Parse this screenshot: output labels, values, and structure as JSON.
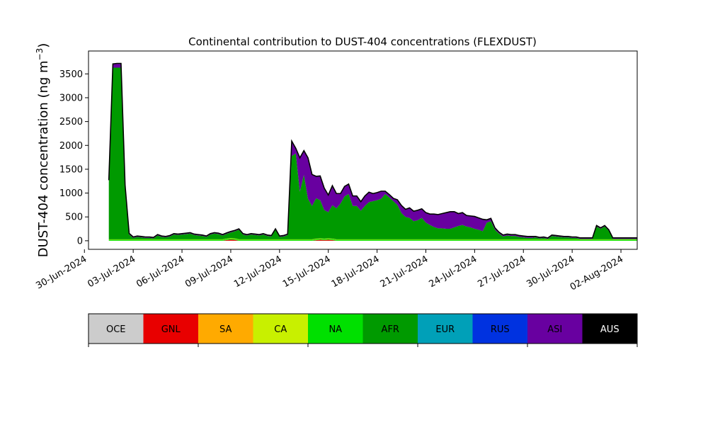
{
  "chart_data": {
    "type": "area",
    "stacked": true,
    "title": "Continental contribution to DUST-404 concentrations (FLEXDUST)",
    "ylabel": "DUST-404 concentration (ng m",
    "ylabel_sup": "−3",
    "ylabel_close": ")",
    "xlabel": "",
    "x_type": "date",
    "x_start": "2024-07-01T12:00",
    "x_step_hours": 6,
    "xlim": [
      "2024-06-30T06:00",
      "2024-08-03T00:00"
    ],
    "ylim": [
      -180,
      3980
    ],
    "y_ticks": [
      0,
      500,
      1000,
      1500,
      2000,
      2500,
      3000,
      3500
    ],
    "x_ticks": [
      "30-Jun-2024",
      "03-Jul-2024",
      "06-Jul-2024",
      "09-Jul-2024",
      "12-Jul-2024",
      "15-Jul-2024",
      "18-Jul-2024",
      "21-Jul-2024",
      "24-Jul-2024",
      "27-Jul-2024",
      "30-Jul-2024",
      "02-Aug-2024"
    ],
    "x_tick_dates": [
      "2024-06-30",
      "2024-07-03",
      "2024-07-06",
      "2024-07-09",
      "2024-07-12",
      "2024-07-15",
      "2024-07-18",
      "2024-07-21",
      "2024-07-24",
      "2024-07-27",
      "2024-07-30",
      "2024-08-02"
    ],
    "grid": false,
    "series": [
      {
        "name": "GNL",
        "color": "#e80000",
        "values": [
          0,
          0,
          0,
          0,
          0,
          0,
          0,
          0,
          0,
          0,
          0,
          0,
          0,
          0,
          0,
          0,
          0,
          0,
          0,
          0,
          0,
          0,
          0,
          0,
          0,
          0,
          0,
          0,
          0,
          15,
          25,
          18,
          0,
          0,
          0,
          0,
          0,
          0,
          0,
          0,
          0,
          0,
          0,
          0,
          0,
          0,
          0,
          0,
          0,
          0,
          0,
          12,
          20,
          15,
          20,
          15,
          0,
          0,
          0,
          0,
          0,
          0,
          0,
          0,
          0,
          0,
          0,
          0,
          0,
          0,
          0,
          0,
          0,
          0,
          0,
          0,
          0,
          0,
          0,
          0,
          0,
          0,
          0,
          0,
          0,
          0,
          0,
          0,
          0,
          0,
          0,
          0,
          0,
          0,
          0,
          0,
          0,
          0,
          0,
          0,
          0,
          0,
          0,
          0,
          0,
          0,
          0,
          0,
          0,
          0,
          0,
          0,
          0,
          0,
          0,
          0,
          0,
          0,
          0,
          0,
          0,
          0,
          0,
          0,
          0,
          0,
          0,
          0,
          0,
          0,
          0,
          0
        ]
      },
      {
        "name": "NA",
        "color": "#00e000",
        "values": [
          20,
          20,
          20,
          20,
          20,
          20,
          20,
          20,
          20,
          20,
          20,
          20,
          20,
          20,
          20,
          20,
          20,
          20,
          20,
          20,
          20,
          20,
          20,
          20,
          20,
          20,
          20,
          20,
          20,
          20,
          20,
          20,
          20,
          20,
          20,
          20,
          20,
          20,
          20,
          20,
          20,
          20,
          20,
          20,
          20,
          20,
          20,
          20,
          20,
          20,
          20,
          20,
          20,
          20,
          20,
          20,
          20,
          20,
          20,
          20,
          20,
          20,
          20,
          20,
          20,
          20,
          20,
          20,
          20,
          20,
          20,
          20,
          20,
          20,
          20,
          20,
          20,
          20,
          20,
          20,
          20,
          20,
          20,
          20,
          20,
          20,
          20,
          20,
          20,
          20,
          20,
          20,
          20,
          20,
          20,
          20,
          20,
          20,
          20,
          20,
          20,
          20,
          20,
          20,
          20,
          20,
          20,
          20,
          20,
          20,
          20,
          20,
          20,
          20,
          20,
          20,
          20,
          20,
          20,
          20,
          20,
          20,
          20,
          20,
          20,
          20,
          20,
          20,
          20,
          20,
          20,
          20
        ]
      },
      {
        "name": "CA",
        "color": "#c8f000",
        "values": [
          10,
          10,
          10,
          10,
          10,
          10,
          10,
          10,
          10,
          10,
          10,
          10,
          10,
          10,
          10,
          10,
          10,
          10,
          10,
          10,
          10,
          10,
          10,
          10,
          10,
          10,
          10,
          10,
          10,
          10,
          10,
          10,
          10,
          10,
          10,
          10,
          10,
          10,
          10,
          10,
          10,
          10,
          10,
          10,
          10,
          10,
          10,
          10,
          10,
          10,
          10,
          10,
          10,
          10,
          10,
          10,
          10,
          10,
          10,
          10,
          10,
          10,
          10,
          10,
          10,
          10,
          10,
          10,
          10,
          10,
          10,
          10,
          10,
          10,
          10,
          10,
          10,
          10,
          10,
          10,
          10,
          10,
          10,
          10,
          10,
          10,
          10,
          10,
          10,
          10,
          10,
          10,
          10,
          10,
          10,
          10,
          10,
          10,
          10,
          10,
          10,
          10,
          10,
          10,
          10,
          10,
          10,
          10,
          10,
          10,
          10,
          10,
          10,
          10,
          10,
          10,
          10,
          10,
          10,
          10,
          10,
          10,
          10,
          10,
          10,
          10,
          10,
          10,
          10,
          10,
          10,
          10
        ]
      },
      {
        "name": "AFR",
        "color": "#009a00",
        "values": [
          1200,
          3600,
          3600,
          3600,
          1100,
          100,
          30,
          50,
          40,
          30,
          30,
          20,
          80,
          50,
          40,
          60,
          100,
          90,
          100,
          110,
          120,
          90,
          80,
          70,
          50,
          100,
          120,
          110,
          80,
          100,
          120,
          150,
          200,
          100,
          80,
          100,
          90,
          80,
          100,
          70,
          60,
          200,
          50,
          60,
          90,
          1750,
          1800,
          1000,
          1350,
          850,
          700,
          850,
          800,
          600,
          550,
          700,
          650,
          750,
          900,
          950,
          700,
          700,
          600,
          700,
          780,
          800,
          820,
          850,
          950,
          880,
          800,
          720,
          550,
          470,
          450,
          380,
          400,
          450,
          350,
          300,
          260,
          230,
          230,
          220,
          220,
          250,
          280,
          300,
          270,
          250,
          220,
          200,
          170,
          350,
          380,
          200,
          120,
          60,
          80,
          70,
          70,
          50,
          40,
          30,
          30,
          40,
          20,
          30,
          10,
          70,
          60,
          50,
          40,
          40,
          30,
          30,
          10,
          10,
          10,
          10,
          270,
          220,
          270,
          180,
          10,
          10,
          10,
          10,
          10,
          10,
          10,
          10
        ]
      },
      {
        "name": "ASI",
        "color": "#6800a0",
        "values": [
          30,
          70,
          80,
          80,
          30,
          15,
          10,
          10,
          10,
          10,
          10,
          10,
          10,
          10,
          10,
          10,
          10,
          10,
          10,
          10,
          10,
          10,
          10,
          10,
          10,
          10,
          10,
          10,
          10,
          10,
          10,
          10,
          10,
          10,
          10,
          10,
          10,
          10,
          10,
          10,
          10,
          10,
          10,
          10,
          10,
          300,
          100,
          700,
          500,
          850,
          650,
          450,
          500,
          450,
          350,
          400,
          300,
          200,
          200,
          200,
          200,
          200,
          180,
          200,
          200,
          150,
          150,
          150,
          50,
          50,
          50,
          100,
          150,
          150,
          200,
          200,
          200,
          180,
          200,
          220,
          260,
          280,
          300,
          330,
          350,
          320,
          250,
          250,
          220,
          230,
          250,
          240,
          240,
          50,
          50,
          30,
          20,
          20,
          20,
          20,
          20,
          20,
          20,
          20,
          20,
          10,
          10,
          10,
          10,
          10,
          10,
          10,
          10,
          10,
          10,
          10,
          10,
          10,
          10,
          10,
          10,
          10,
          10,
          10,
          10,
          10,
          10,
          10,
          10,
          10,
          10,
          10
        ]
      },
      {
        "name": "AUS",
        "color": "#000000",
        "values": [
          10,
          10,
          10,
          10,
          10,
          10,
          10,
          10,
          10,
          10,
          10,
          10,
          10,
          10,
          10,
          10,
          10,
          10,
          10,
          10,
          10,
          10,
          10,
          10,
          10,
          10,
          10,
          10,
          10,
          10,
          10,
          10,
          10,
          10,
          10,
          10,
          10,
          10,
          10,
          10,
          10,
          10,
          10,
          10,
          10,
          10,
          10,
          10,
          10,
          10,
          10,
          10,
          10,
          10,
          10,
          10,
          10,
          10,
          10,
          10,
          10,
          10,
          10,
          10,
          10,
          10,
          10,
          10,
          10,
          10,
          10,
          10,
          10,
          10,
          10,
          10,
          10,
          10,
          10,
          10,
          10,
          10,
          10,
          10,
          10,
          10,
          10,
          10,
          10,
          10,
          10,
          10,
          10,
          10,
          10,
          10,
          10,
          10,
          10,
          10,
          10,
          10,
          10,
          10,
          10,
          10,
          10,
          10,
          10,
          10,
          10,
          10,
          10,
          10,
          10,
          10,
          10,
          10,
          10,
          10,
          10,
          10,
          10,
          10,
          10,
          10,
          10,
          10,
          10,
          10,
          10,
          10
        ]
      }
    ],
    "legend": {
      "placement": "bottom",
      "items": [
        {
          "label": "OCE",
          "color": "#cccccc",
          "text_color": "#000000"
        },
        {
          "label": "GNL",
          "color": "#e80000",
          "text_color": "#000000"
        },
        {
          "label": "SA",
          "color": "#ffaa00",
          "text_color": "#000000"
        },
        {
          "label": "CA",
          "color": "#c8f000",
          "text_color": "#000000"
        },
        {
          "label": "NA",
          "color": "#00e000",
          "text_color": "#000000"
        },
        {
          "label": "AFR",
          "color": "#009a00",
          "text_color": "#000000"
        },
        {
          "label": "EUR",
          "color": "#00a0b8",
          "text_color": "#000000"
        },
        {
          "label": "RUS",
          "color": "#0032e0",
          "text_color": "#000000"
        },
        {
          "label": "ASI",
          "color": "#6800a0",
          "text_color": "#000000"
        },
        {
          "label": "AUS",
          "color": "#000000",
          "text_color": "#ffffff"
        }
      ]
    }
  }
}
